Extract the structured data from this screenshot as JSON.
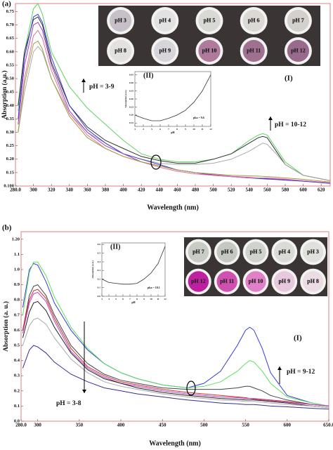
{
  "chart_data": [
    {
      "type": "line",
      "panel_label": "(a)",
      "xlabel": "Wavelength (nm)",
      "ylabel": "Absorption (a.u.)",
      "x": [
        283,
        290,
        300,
        305,
        310,
        320,
        340,
        360,
        380,
        400,
        420,
        440,
        460,
        480,
        500,
        520,
        540,
        550,
        555,
        560,
        570,
        580,
        600,
        630
      ],
      "xlim": [
        280,
        630
      ],
      "xticks": [
        {
          "value": 280,
          "label": "280.0"
        },
        300,
        320,
        340,
        360,
        380,
        400,
        420,
        440,
        460,
        480,
        500,
        520,
        540,
        560,
        580,
        600,
        620
      ],
      "ylim": [
        0.1,
        0.78
      ],
      "yticks": [
        {
          "value": 0.1,
          "label": "0.100"
        },
        0.15,
        {
          "value": 0.2,
          "label": "0.20"
        },
        0.25,
        {
          "value": 0.3,
          "label": "0.30"
        },
        0.35,
        {
          "value": 0.4,
          "label": "0.40"
        },
        0.45,
        {
          "value": 0.5,
          "label": "0.50"
        },
        0.55,
        {
          "value": 0.6,
          "label": "0.60"
        },
        0.65,
        {
          "value": 0.7,
          "label": "0.70"
        },
        0.75
      ],
      "series": [
        {
          "color": "#5fd35f",
          "values": [
            0.38,
            0.6,
            0.76,
            0.78,
            0.74,
            0.6,
            0.47,
            0.39,
            0.33,
            0.27,
            0.22,
            0.2,
            0.19,
            0.19,
            0.2,
            0.22,
            0.27,
            0.29,
            0.295,
            0.29,
            0.24,
            0.19,
            0.14,
            0.12
          ]
        },
        {
          "color": "#333333",
          "values": [
            0.4,
            0.6,
            0.72,
            0.73,
            0.7,
            0.56,
            0.4,
            0.32,
            0.27,
            0.24,
            0.21,
            0.195,
            0.185,
            0.185,
            0.2,
            0.22,
            0.26,
            0.28,
            0.285,
            0.28,
            0.23,
            0.18,
            0.14,
            0.12
          ]
        },
        {
          "color": "#aaaaaa",
          "values": [
            0.3,
            0.45,
            0.6,
            0.62,
            0.6,
            0.5,
            0.37,
            0.3,
            0.26,
            0.22,
            0.2,
            0.185,
            0.18,
            0.18,
            0.185,
            0.2,
            0.23,
            0.25,
            0.26,
            0.255,
            0.22,
            0.18,
            0.14,
            0.12
          ]
        },
        {
          "color": "#3a3ad0",
          "values": [
            0.35,
            0.58,
            0.73,
            0.74,
            0.71,
            0.58,
            0.4,
            0.31,
            0.26,
            0.22,
            0.2,
            0.18,
            0.16,
            0.15,
            0.14,
            0.135,
            0.13,
            0.128,
            0.127,
            0.126,
            0.124,
            0.122,
            0.118,
            0.11
          ]
        },
        {
          "color": "#9a3cc0",
          "values": [
            0.33,
            0.55,
            0.7,
            0.71,
            0.68,
            0.55,
            0.38,
            0.3,
            0.25,
            0.22,
            0.19,
            0.175,
            0.16,
            0.15,
            0.142,
            0.136,
            0.132,
            0.13,
            0.129,
            0.128,
            0.126,
            0.124,
            0.12,
            0.112
          ]
        },
        {
          "color": "#e070a0",
          "values": [
            0.3,
            0.5,
            0.66,
            0.68,
            0.65,
            0.53,
            0.37,
            0.29,
            0.24,
            0.21,
            0.19,
            0.17,
            0.155,
            0.145,
            0.14,
            0.135,
            0.13,
            0.13,
            0.13,
            0.13,
            0.128,
            0.126,
            0.12,
            0.112
          ]
        },
        {
          "color": "#a0a040",
          "values": [
            0.3,
            0.48,
            0.63,
            0.64,
            0.61,
            0.5,
            0.36,
            0.28,
            0.24,
            0.21,
            0.19,
            0.175,
            0.16,
            0.15,
            0.145,
            0.14,
            0.138,
            0.137,
            0.136,
            0.135,
            0.133,
            0.13,
            0.125,
            0.115
          ]
        }
      ],
      "annotations": [
        "pH = 3-9",
        "pH = 10-12",
        "(I)"
      ],
      "photos": {
        "labels": [
          [
            "pH 3",
            "pH 4",
            "pH 5",
            "pH 6",
            "pH 7"
          ],
          [
            "pH 8",
            "pH 9",
            "pH 10",
            "pH 11",
            "pH 12"
          ]
        ],
        "colors": [
          [
            "#c8c0c8",
            "#e2e2e2",
            "#d8d8d4",
            "#dcd8d4",
            "#d4d0cc"
          ],
          [
            "#e4e0e0",
            "#d8d4dc",
            "#b07a9c",
            "#a07090",
            "#9a6a8c"
          ]
        ]
      },
      "inset": {
        "type": "line",
        "title": "(II)",
        "xlabel": "pH",
        "ylabel": "Absorption (a.u.)",
        "annotation": "pka = 9.6",
        "x": [
          3,
          4,
          5,
          6,
          7,
          8,
          9,
          10,
          11,
          12
        ],
        "values": [
          0.2,
          0.18,
          0.165,
          0.165,
          0.18,
          0.2,
          0.23,
          0.28,
          0.35,
          0.45
        ],
        "xlim": [
          3,
          12
        ],
        "xticks": [
          3,
          4,
          5,
          6,
          7,
          8,
          9,
          10,
          11,
          12
        ],
        "ylim": [
          0.13,
          0.47
        ],
        "yticks": [
          0.15,
          {
            "value": 0.2,
            "label": "0.20"
          },
          0.25,
          {
            "value": 0.3,
            "label": "0.30"
          },
          0.35,
          {
            "value": 0.4,
            "label": "0.40"
          },
          0.45
        ]
      }
    },
    {
      "type": "line",
      "panel_label": "(b)",
      "xlabel": "Wavelength (nm)",
      "ylabel": "Absorption (a. u.)",
      "x": [
        282,
        290,
        295,
        300,
        310,
        320,
        340,
        360,
        380,
        400,
        420,
        450,
        480,
        500,
        520,
        540,
        550,
        555,
        560,
        570,
        580,
        600,
        630,
        650
      ],
      "xlim": [
        280,
        650
      ],
      "xticks": [
        {
          "value": 280,
          "label": "280.0"
        },
        300,
        350,
        400,
        450,
        500,
        550,
        600,
        {
          "value": 650,
          "label": "650.0"
        }
      ],
      "ylim": [
        0,
        1.25
      ],
      "yticks": [
        {
          "value": 0,
          "label": "0.0"
        },
        0.1,
        0.2,
        0.3,
        0.4,
        0.5,
        0.6,
        0.7,
        0.8,
        0.9,
        {
          "value": 1,
          "label": "1.0"
        },
        1.1,
        {
          "value": 1.2,
          "label": "1.20"
        }
      ],
      "series": [
        {
          "color": "#3a3ae0",
          "values": [
            0.75,
            1.0,
            1.04,
            1.03,
            0.92,
            0.78,
            0.6,
            0.47,
            0.38,
            0.32,
            0.28,
            0.24,
            0.22,
            0.25,
            0.33,
            0.5,
            0.6,
            0.62,
            0.6,
            0.48,
            0.32,
            0.17,
            0.12,
            0.1
          ]
        },
        {
          "color": "#5fe05f",
          "values": [
            0.7,
            0.98,
            1.05,
            1.05,
            0.96,
            0.82,
            0.62,
            0.48,
            0.38,
            0.32,
            0.28,
            0.24,
            0.22,
            0.23,
            0.26,
            0.33,
            0.38,
            0.4,
            0.39,
            0.33,
            0.25,
            0.16,
            0.12,
            0.1
          ]
        },
        {
          "color": "#444444",
          "values": [
            0.6,
            0.83,
            0.89,
            0.9,
            0.83,
            0.7,
            0.5,
            0.38,
            0.31,
            0.27,
            0.25,
            0.22,
            0.21,
            0.21,
            0.21,
            0.22,
            0.23,
            0.23,
            0.22,
            0.2,
            0.17,
            0.14,
            0.11,
            0.1
          ]
        },
        {
          "color": "#d03030",
          "values": [
            0.6,
            0.8,
            0.86,
            0.87,
            0.81,
            0.68,
            0.48,
            0.36,
            0.3,
            0.26,
            0.24,
            0.21,
            0.19,
            0.18,
            0.17,
            0.16,
            0.155,
            0.15,
            0.15,
            0.145,
            0.14,
            0.13,
            0.11,
            0.1
          ]
        },
        {
          "color": "#c040c0",
          "values": [
            0.58,
            0.78,
            0.84,
            0.85,
            0.79,
            0.66,
            0.46,
            0.35,
            0.29,
            0.25,
            0.23,
            0.2,
            0.18,
            0.17,
            0.16,
            0.155,
            0.15,
            0.15,
            0.145,
            0.14,
            0.135,
            0.125,
            0.11,
            0.1
          ]
        },
        {
          "color": "#222222",
          "values": [
            0.55,
            0.72,
            0.78,
            0.79,
            0.73,
            0.62,
            0.45,
            0.34,
            0.28,
            0.25,
            0.22,
            0.19,
            0.17,
            0.16,
            0.15,
            0.145,
            0.14,
            0.14,
            0.14,
            0.135,
            0.13,
            0.12,
            0.1,
            0.09
          ]
        },
        {
          "color": "#aaaaaa",
          "values": [
            0.5,
            0.63,
            0.67,
            0.68,
            0.64,
            0.55,
            0.41,
            0.32,
            0.26,
            0.23,
            0.21,
            0.18,
            0.16,
            0.15,
            0.14,
            0.135,
            0.13,
            0.13,
            0.13,
            0.125,
            0.12,
            0.11,
            0.1,
            0.09
          ]
        },
        {
          "color": "#303090",
          "values": [
            0.35,
            0.47,
            0.5,
            0.49,
            0.45,
            0.39,
            0.31,
            0.26,
            0.22,
            0.2,
            0.18,
            0.16,
            0.14,
            0.13,
            0.12,
            0.115,
            0.11,
            0.11,
            0.11,
            0.105,
            0.1,
            0.095,
            0.085,
            0.08
          ]
        }
      ],
      "annotations": [
        "pH = 3-8",
        "pH = 9-12",
        "(I)"
      ],
      "photos": {
        "labels": [
          [
            "pH 7",
            "pH 6",
            "pH 5",
            "pH 4",
            "pH 3"
          ],
          [
            "pH 12",
            "pH 11",
            "pH 10",
            "pH 9",
            "pH 8"
          ]
        ],
        "colors": [
          [
            "#c8ccc4",
            "#c4c8c0",
            "#d0d2cc",
            "#dadad6",
            "#e0e0dc"
          ],
          [
            "#c020a0",
            "#d050b0",
            "#e080c8",
            "#e8c8dc",
            "#ecdce4"
          ]
        ]
      },
      "inset": {
        "type": "line",
        "title": "(II)",
        "xlabel": "pH",
        "ylabel": "Absorption (a.u.)",
        "annotation": "pka = 10.1",
        "x": [
          3,
          4,
          5,
          6,
          7,
          8,
          9,
          10,
          11,
          12
        ],
        "values": [
          0.2,
          0.16,
          0.15,
          0.14,
          0.14,
          0.15,
          0.2,
          0.27,
          0.38,
          0.58
        ],
        "xlim": [
          3,
          12
        ],
        "xticks": [
          3,
          4,
          5,
          6,
          7,
          8,
          9,
          10,
          11,
          12
        ],
        "ylim": [
          0,
          0.62
        ],
        "yticks": [
          {
            "value": 0,
            "label": "0.0"
          },
          0.1,
          0.2,
          0.3,
          0.4,
          0.5,
          0.6
        ]
      }
    }
  ]
}
